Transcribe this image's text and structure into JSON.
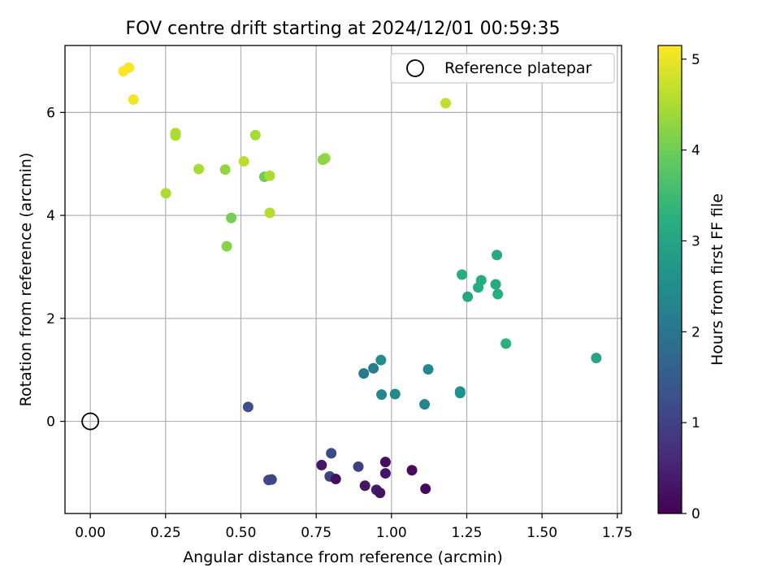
{
  "chart_data": {
    "type": "scatter",
    "title": "FOV centre drift starting at 2024/12/01 00:59:35",
    "xlabel": "Angular distance from reference (arcmin)",
    "ylabel": "Rotation from reference (arcmin)",
    "xlim": [
      -0.084,
      1.764
    ],
    "ylim": [
      -1.79,
      7.3
    ],
    "xticks": [
      0.0,
      0.25,
      0.5,
      0.75,
      1.0,
      1.25,
      1.5,
      1.75
    ],
    "xtick_labels": [
      "0.00",
      "0.25",
      "0.50",
      "0.75",
      "1.00",
      "1.25",
      "1.50",
      "1.75"
    ],
    "yticks": [
      0,
      2,
      4,
      6
    ],
    "ytick_labels": [
      "0",
      "2",
      "4",
      "6"
    ],
    "grid": true,
    "legend": {
      "position": "top-right",
      "entries": [
        "Reference platepar"
      ]
    },
    "reference_point": {
      "x": 0.0,
      "y": 0.0,
      "label": "Reference platepar",
      "marker": "open-circle"
    },
    "colorbar": {
      "label": "Hours from first FF file",
      "colormap": "viridis",
      "range": [
        0,
        5.15
      ],
      "ticks": [
        0,
        1,
        2,
        3,
        4,
        5
      ],
      "tick_labels": [
        "0",
        "1",
        "2",
        "3",
        "4",
        "5"
      ]
    },
    "points": [
      {
        "x": 0.11,
        "y": 6.8,
        "c": 5.15
      },
      {
        "x": 0.128,
        "y": 6.87,
        "c": 5.1
      },
      {
        "x": 0.143,
        "y": 6.25,
        "c": 5.05
      },
      {
        "x": 1.18,
        "y": 6.18,
        "c": 4.65
      },
      {
        "x": 0.283,
        "y": 5.6,
        "c": 4.55
      },
      {
        "x": 0.283,
        "y": 5.55,
        "c": 4.5
      },
      {
        "x": 0.548,
        "y": 5.56,
        "c": 4.45
      },
      {
        "x": 0.51,
        "y": 5.05,
        "c": 4.6
      },
      {
        "x": 0.78,
        "y": 5.11,
        "c": 4.35
      },
      {
        "x": 0.772,
        "y": 5.08,
        "c": 4.25
      },
      {
        "x": 0.36,
        "y": 4.9,
        "c": 4.45
      },
      {
        "x": 0.448,
        "y": 4.89,
        "c": 4.3
      },
      {
        "x": 0.578,
        "y": 4.75,
        "c": 4.0
      },
      {
        "x": 0.596,
        "y": 4.77,
        "c": 4.5
      },
      {
        "x": 0.251,
        "y": 4.43,
        "c": 4.5
      },
      {
        "x": 0.468,
        "y": 3.95,
        "c": 4.05
      },
      {
        "x": 0.596,
        "y": 4.05,
        "c": 4.55
      },
      {
        "x": 0.453,
        "y": 3.4,
        "c": 4.2
      },
      {
        "x": 1.35,
        "y": 3.23,
        "c": 3.1
      },
      {
        "x": 1.234,
        "y": 2.85,
        "c": 3.2
      },
      {
        "x": 1.298,
        "y": 2.74,
        "c": 3.15
      },
      {
        "x": 1.346,
        "y": 2.66,
        "c": 3.1
      },
      {
        "x": 1.288,
        "y": 2.6,
        "c": 3.15
      },
      {
        "x": 1.353,
        "y": 2.47,
        "c": 3.2
      },
      {
        "x": 1.253,
        "y": 2.42,
        "c": 3.05
      },
      {
        "x": 1.38,
        "y": 1.51,
        "c": 3.25
      },
      {
        "x": 1.68,
        "y": 1.23,
        "c": 3.0
      },
      {
        "x": 0.965,
        "y": 1.19,
        "c": 2.5
      },
      {
        "x": 0.94,
        "y": 1.03,
        "c": 2.2
      },
      {
        "x": 0.908,
        "y": 0.93,
        "c": 2.05
      },
      {
        "x": 1.122,
        "y": 1.01,
        "c": 2.4
      },
      {
        "x": 0.967,
        "y": 0.52,
        "c": 2.35
      },
      {
        "x": 1.012,
        "y": 0.53,
        "c": 2.45
      },
      {
        "x": 1.228,
        "y": 0.58,
        "c": 2.65
      },
      {
        "x": 1.228,
        "y": 0.55,
        "c": 2.6
      },
      {
        "x": 1.11,
        "y": 0.33,
        "c": 2.3
      },
      {
        "x": 0.524,
        "y": 0.28,
        "c": 1.2
      },
      {
        "x": 0.8,
        "y": -0.62,
        "c": 1.15
      },
      {
        "x": 0.768,
        "y": -0.85,
        "c": 0.3
      },
      {
        "x": 0.89,
        "y": -0.88,
        "c": 0.95
      },
      {
        "x": 0.98,
        "y": -0.79,
        "c": 0.2
      },
      {
        "x": 1.068,
        "y": -0.95,
        "c": 0.15
      },
      {
        "x": 0.98,
        "y": -1.01,
        "c": 0.3
      },
      {
        "x": 0.795,
        "y": -1.07,
        "c": 1.05
      },
      {
        "x": 0.815,
        "y": -1.12,
        "c": 0.2
      },
      {
        "x": 0.592,
        "y": -1.14,
        "c": 1.15
      },
      {
        "x": 0.602,
        "y": -1.13,
        "c": 1.1
      },
      {
        "x": 0.912,
        "y": -1.25,
        "c": 0.3
      },
      {
        "x": 0.95,
        "y": -1.33,
        "c": 0.4
      },
      {
        "x": 0.962,
        "y": -1.39,
        "c": 0.25
      },
      {
        "x": 1.113,
        "y": -1.31,
        "c": 0.15
      }
    ]
  }
}
